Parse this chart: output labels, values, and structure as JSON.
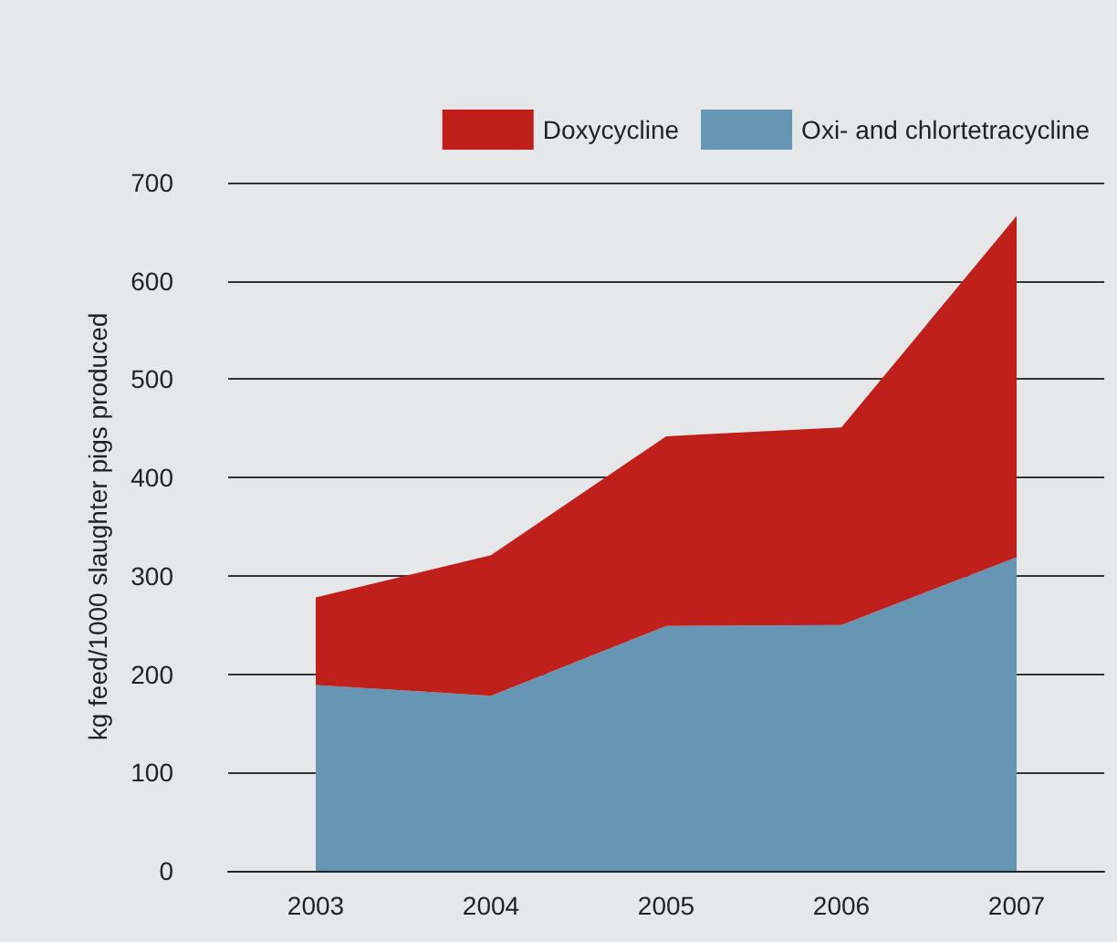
{
  "chart_data": {
    "type": "area",
    "stacked": true,
    "ylabel": "kg feed/1000 slaughter pigs produced",
    "categories": [
      "2003",
      "2004",
      "2005",
      "2006",
      "2007"
    ],
    "series": [
      {
        "name": "Oxi- and chlortetracycline",
        "color": "#6795b4",
        "values": [
          189,
          178,
          249,
          250,
          319
        ]
      },
      {
        "name": "Doxycycline",
        "color": "#c0201b",
        "values": [
          89,
          143,
          193,
          201,
          347
        ]
      }
    ],
    "ylim": [
      0,
      700
    ],
    "yticks": [
      0,
      100,
      200,
      300,
      400,
      500,
      600,
      700
    ],
    "grid": "y",
    "legend": "top right"
  }
}
